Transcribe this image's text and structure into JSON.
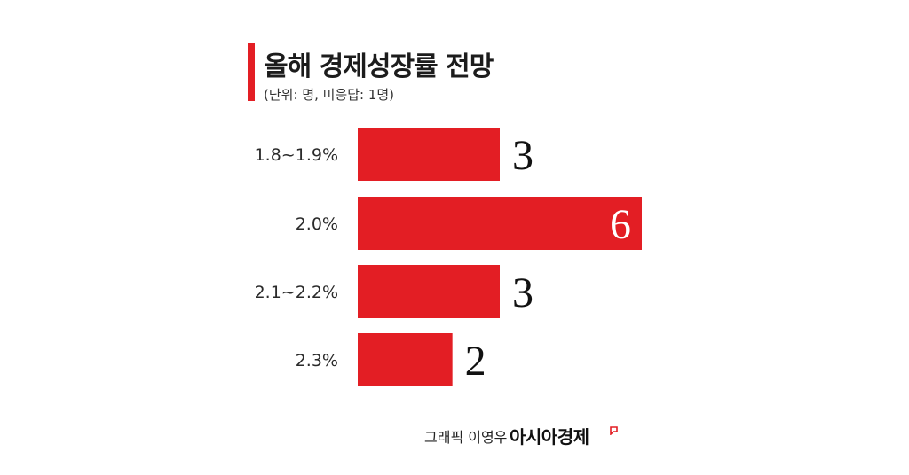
{
  "header": {
    "title": "올해 경제성장률 전망",
    "subtitle": "(단위: 명, 미응답: 1명)"
  },
  "footer": {
    "credit": "그래픽 이영우",
    "brand": "아시아경제"
  },
  "colors": {
    "accent": "#e31e24",
    "text": "#222222",
    "value_inside": "#ffffff"
  },
  "chart_data": {
    "type": "bar",
    "orientation": "horizontal",
    "title": "올해 경제성장률 전망",
    "subtitle": "(단위: 명, 미응답: 1명)",
    "categories": [
      "1.8~1.9%",
      "2.0%",
      "2.1~2.2%",
      "2.3%"
    ],
    "values": [
      3,
      6,
      3,
      2
    ],
    "xlim": [
      0,
      6
    ],
    "grid": false,
    "legend": "none"
  }
}
